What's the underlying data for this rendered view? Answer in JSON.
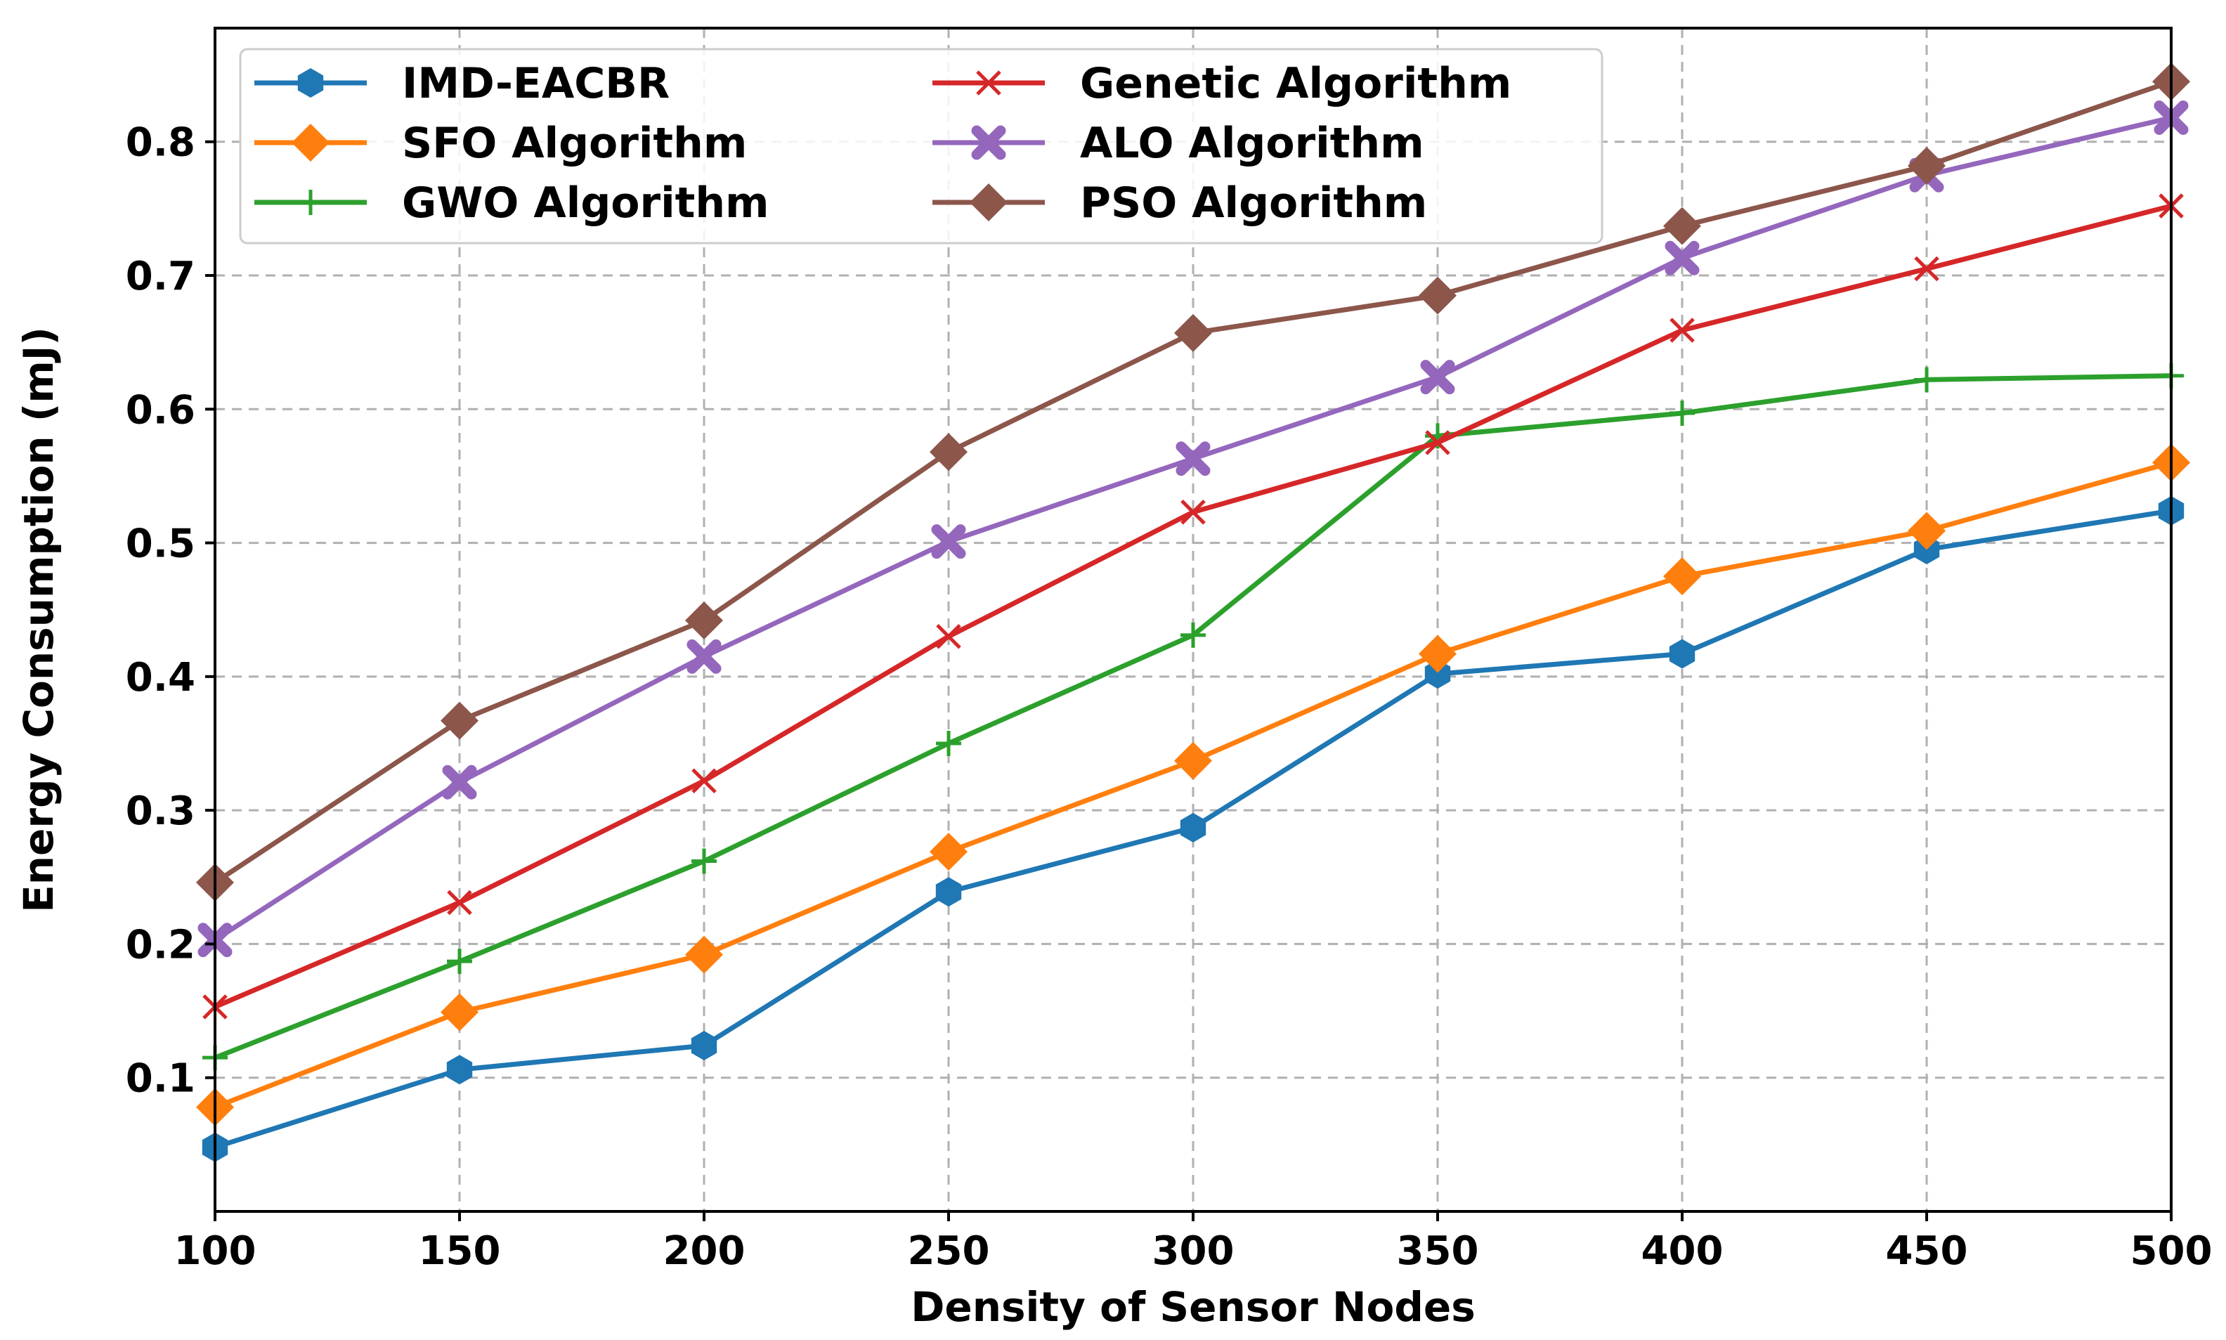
{
  "chart_data": {
    "type": "line",
    "title": "",
    "xlabel": "Density of Sensor Nodes",
    "ylabel": "Energy Consumption (mJ)",
    "x": [
      100,
      150,
      200,
      250,
      300,
      350,
      400,
      450,
      500
    ],
    "xlim": [
      100,
      500
    ],
    "ylim": [
      0.0,
      0.885
    ],
    "xticks": [
      100,
      150,
      200,
      250,
      300,
      350,
      400,
      450,
      500
    ],
    "xtick_labels": [
      "100",
      "150",
      "200",
      "250",
      "300",
      "350",
      "400",
      "450",
      "500"
    ],
    "yticks": [
      0.1,
      0.2,
      0.3,
      0.4,
      0.5,
      0.6,
      0.7,
      0.8
    ],
    "ytick_labels": [
      "0.1",
      "0.2",
      "0.3",
      "0.4",
      "0.5",
      "0.6",
      "0.7",
      "0.8"
    ],
    "grid": true,
    "legend_position": "top-left",
    "legend_columns": 2,
    "series": [
      {
        "name": "IMD-EACBR",
        "color": "#1f77b4",
        "marker": "hexagon",
        "values": [
          0.048,
          0.106,
          0.124,
          0.239,
          0.287,
          0.402,
          0.417,
          0.495,
          0.524
        ]
      },
      {
        "name": "SFO Algorithm",
        "color": "#ff7f0e",
        "marker": "diamond",
        "values": [
          0.078,
          0.149,
          0.192,
          0.269,
          0.337,
          0.417,
          0.475,
          0.509,
          0.56
        ]
      },
      {
        "name": "GWO Algorithm",
        "color": "#2ca02c",
        "marker": "plus",
        "values": [
          0.115,
          0.187,
          0.262,
          0.35,
          0.431,
          0.58,
          0.597,
          0.622,
          0.625
        ]
      },
      {
        "name": "Genetic Algorithm",
        "color": "#d62728",
        "marker": "x",
        "values": [
          0.153,
          0.231,
          0.322,
          0.43,
          0.523,
          0.575,
          0.659,
          0.705,
          0.752
        ]
      },
      {
        "name": "ALO Algorithm",
        "color": "#9467bd",
        "marker": "x-filled",
        "values": [
          0.203,
          0.321,
          0.415,
          0.501,
          0.563,
          0.624,
          0.713,
          0.775,
          0.818
        ]
      },
      {
        "name": "PSO Algorithm",
        "color": "#8c564b",
        "marker": "diamond",
        "values": [
          0.246,
          0.367,
          0.442,
          0.568,
          0.657,
          0.685,
          0.737,
          0.782,
          0.845
        ]
      }
    ]
  }
}
